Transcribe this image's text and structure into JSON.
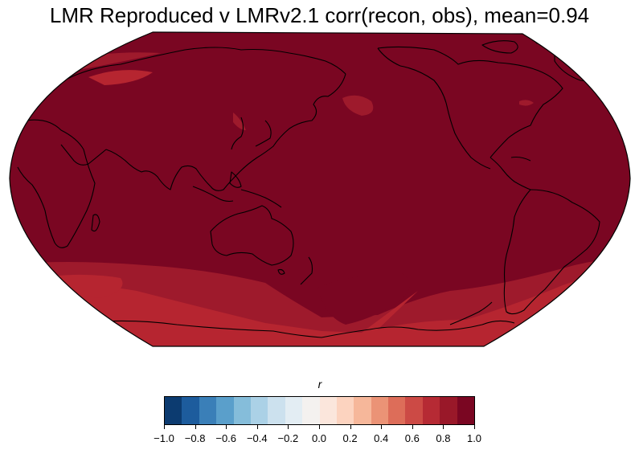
{
  "title": "LMR Reproduced v LMRv2.1 corr(recon, obs), mean=0.94",
  "map": {
    "projection": "Robinson (Pacific-centered)",
    "variable": "correlation",
    "mean": 0.94,
    "colors": {
      "r_0_9_to_1_0": "#7a0622",
      "r_0_8_to_0_9": "#9e1a2c",
      "r_0_7_to_0_8": "#b62530",
      "r_0_6_to_0_7": "#cc4b42",
      "ocean_background": "#e8e8e8",
      "coastline": "#000000"
    }
  },
  "colorbar": {
    "label": "r",
    "ticks": [
      "−1.0",
      "−0.8",
      "−0.6",
      "−0.4",
      "−0.2",
      "0.0",
      "0.2",
      "0.4",
      "0.6",
      "0.8",
      "1.0"
    ],
    "tick_values": [
      -1.0,
      -0.8,
      -0.6,
      -0.4,
      -0.2,
      0.0,
      0.2,
      0.4,
      0.6,
      0.8,
      1.0
    ],
    "colors": [
      "#0c3b70",
      "#1d5c9d",
      "#3a7fb8",
      "#5a9fcb",
      "#85bdda",
      "#abd1e6",
      "#cce1ee",
      "#e3edf3",
      "#f4f1ef",
      "#fbe6dc",
      "#fcd3bf",
      "#f6b79a",
      "#eb9376",
      "#dd6d59",
      "#cc4a45",
      "#b62a34",
      "#991829",
      "#7a0622"
    ]
  }
}
